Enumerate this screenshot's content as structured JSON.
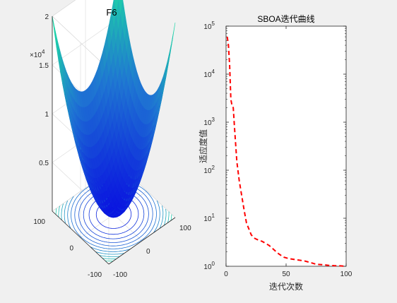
{
  "colors": {
    "background": "#f0f0f0",
    "axes": "#262626",
    "grid": "#d9d9d9",
    "curve": "#ff0000",
    "surface_high": "#1ee3a0",
    "surface_mid": "#1f76d2",
    "surface_low": "#0a14e0"
  },
  "chart_data": [
    {
      "type": "surface",
      "title": "F6",
      "z_exponent_label": "×10",
      "z_exponent_power": "4",
      "zticks": [
        "0.5",
        "1",
        "1.5",
        "2"
      ],
      "xticks": [
        "-100",
        "0",
        "100"
      ],
      "yticks": [
        "-100",
        "0",
        "100"
      ],
      "xlim": [
        -100,
        100
      ],
      "ylim": [
        -100,
        100
      ],
      "zlim": [
        0,
        20000
      ],
      "function": "sum of squares",
      "contour_projection": true,
      "grid": true,
      "colormap": "winter"
    },
    {
      "type": "line",
      "title": "SBOA迭代曲线",
      "xlabel": "迭代次数",
      "ylabel": "适应度值",
      "xlim": [
        0,
        100
      ],
      "ylim": [
        1,
        100000
      ],
      "yscale": "log",
      "xticks": [
        "0",
        "50",
        "100"
      ],
      "ytick_base": "10",
      "ytick_powers": [
        "0",
        "1",
        "2",
        "3",
        "4",
        "5"
      ],
      "grid": false,
      "line_style": "dashed",
      "series": [
        {
          "x": [
            1,
            2,
            3,
            4,
            5,
            6,
            7,
            9,
            11,
            13,
            15,
            17,
            19,
            21,
            24,
            27,
            30,
            33,
            36,
            40,
            44,
            48,
            52,
            56,
            60,
            65,
            70,
            75,
            80,
            85,
            90,
            95,
            100
          ],
          "values": [
            60000,
            40000,
            15000,
            3000,
            2200,
            2000,
            800,
            150,
            60,
            30,
            15,
            8,
            6,
            4.5,
            3.8,
            3.5,
            3.3,
            3.0,
            2.7,
            2.2,
            1.8,
            1.55,
            1.45,
            1.4,
            1.35,
            1.3,
            1.2,
            1.1,
            1.08,
            1.05,
            1.03,
            1.02,
            1.0
          ]
        }
      ]
    }
  ]
}
